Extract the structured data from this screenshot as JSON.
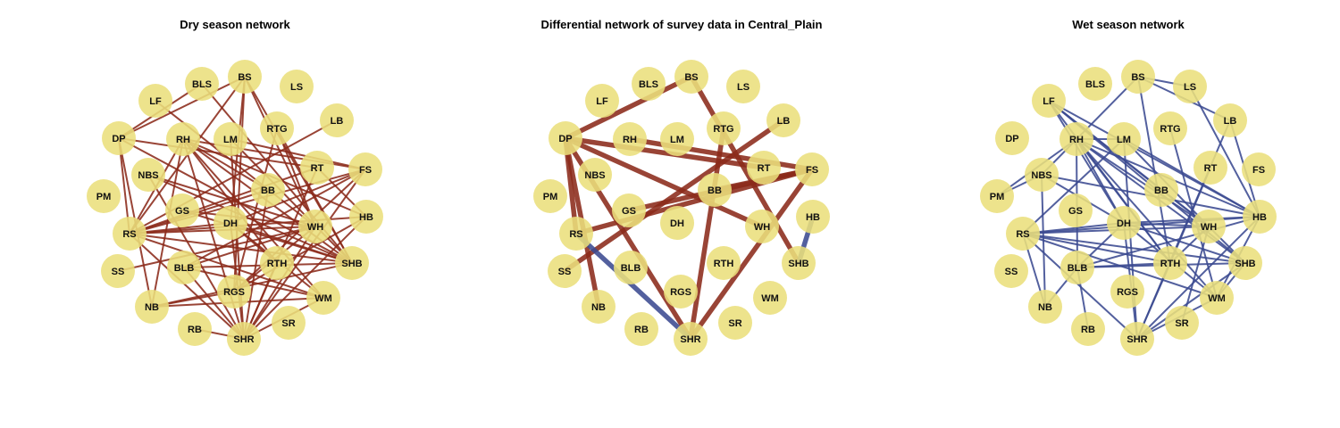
{
  "colors": {
    "node": "#eadf7c",
    "positive_edge": "#8b2a1a",
    "negative_edge": "#3b4a91"
  },
  "nodes": [
    "BS",
    "BLS",
    "LS",
    "LF",
    "LB",
    "DP",
    "RH",
    "LM",
    "RTG",
    "RT",
    "FS",
    "NBS",
    "BB",
    "PM",
    "GS",
    "DH",
    "WH",
    "HB",
    "RS",
    "RTH",
    "SHB",
    "SS",
    "BLB",
    "RGS",
    "WM",
    "NB",
    "RB",
    "SHR",
    "SR"
  ],
  "panels": [
    {
      "title": "Dry season network",
      "edge_color": "#8b2a1a",
      "edges": [
        [
          "DP",
          "BS"
        ],
        [
          "DP",
          "BLS"
        ],
        [
          "DP",
          "RT"
        ],
        [
          "DP",
          "SHB"
        ],
        [
          "DP",
          "RS"
        ],
        [
          "DP",
          "NB"
        ],
        [
          "LF",
          "WH"
        ],
        [
          "BLS",
          "SHB"
        ],
        [
          "BS",
          "RS"
        ],
        [
          "BS",
          "SHB"
        ],
        [
          "BS",
          "WH"
        ],
        [
          "BS",
          "DH"
        ],
        [
          "BS",
          "RGS"
        ],
        [
          "RH",
          "FS"
        ],
        [
          "RH",
          "SHB"
        ],
        [
          "RH",
          "RS"
        ],
        [
          "RH",
          "WM"
        ],
        [
          "RH",
          "SHR"
        ],
        [
          "RH",
          "NB"
        ],
        [
          "RH",
          "BB"
        ],
        [
          "RH",
          "RTH"
        ],
        [
          "RH",
          "HB"
        ],
        [
          "LM",
          "FS"
        ],
        [
          "LM",
          "SHB"
        ],
        [
          "LM",
          "SHR"
        ],
        [
          "RTG",
          "WH"
        ],
        [
          "RTG",
          "SHB"
        ],
        [
          "RTG",
          "RGS"
        ],
        [
          "LB",
          "RS"
        ],
        [
          "RT",
          "RS"
        ],
        [
          "RT",
          "HB"
        ],
        [
          "RT",
          "SHR"
        ],
        [
          "FS",
          "SHR"
        ],
        [
          "FS",
          "RS"
        ],
        [
          "FS",
          "DH"
        ],
        [
          "FS",
          "BLB"
        ],
        [
          "FS",
          "RGS"
        ],
        [
          "NBS",
          "SHB"
        ],
        [
          "NBS",
          "WH"
        ],
        [
          "NBS",
          "SHR"
        ],
        [
          "BB",
          "RS"
        ],
        [
          "BB",
          "SHR"
        ],
        [
          "GS",
          "WH"
        ],
        [
          "GS",
          "SHB"
        ],
        [
          "DH",
          "RS"
        ],
        [
          "DH",
          "SHR"
        ],
        [
          "DH",
          "WM"
        ],
        [
          "DH",
          "SHB"
        ],
        [
          "DH",
          "RTH"
        ],
        [
          "WH",
          "RS"
        ],
        [
          "WH",
          "SHR"
        ],
        [
          "WH",
          "BLB"
        ],
        [
          "WH",
          "RGS"
        ],
        [
          "WH",
          "SS"
        ],
        [
          "HB",
          "RS"
        ],
        [
          "HB",
          "SHR"
        ],
        [
          "HB",
          "RGS"
        ],
        [
          "RS",
          "SHB"
        ],
        [
          "RS",
          "WM"
        ],
        [
          "RS",
          "SHR"
        ],
        [
          "RTH",
          "SHR"
        ],
        [
          "SHB",
          "BLB"
        ],
        [
          "SHB",
          "NB"
        ],
        [
          "BLB",
          "SHR"
        ],
        [
          "BLB",
          "WM"
        ],
        [
          "RGS",
          "NB"
        ],
        [
          "NB",
          "WM"
        ],
        [
          "WM",
          "SHR"
        ],
        [
          "RB",
          "SHR"
        ]
      ]
    },
    {
      "title": "Differential network of survey data in Central_Plain",
      "edges": [
        {
          "e": [
            "DP",
            "BS"
          ],
          "s": "pos"
        },
        {
          "e": [
            "DP",
            "RT"
          ],
          "s": "pos"
        },
        {
          "e": [
            "DP",
            "RS"
          ],
          "s": "pos"
        },
        {
          "e": [
            "DP",
            "NB"
          ],
          "s": "pos"
        },
        {
          "e": [
            "DP",
            "WH"
          ],
          "s": "pos"
        },
        {
          "e": [
            "DP",
            "SHR"
          ],
          "s": "pos"
        },
        {
          "e": [
            "BS",
            "SHB"
          ],
          "s": "pos"
        },
        {
          "e": [
            "RH",
            "FS"
          ],
          "s": "pos"
        },
        {
          "e": [
            "RTG",
            "SHR"
          ],
          "s": "pos"
        },
        {
          "e": [
            "LB",
            "SS"
          ],
          "s": "pos"
        },
        {
          "e": [
            "FS",
            "RS"
          ],
          "s": "pos"
        },
        {
          "e": [
            "FS",
            "SHR"
          ],
          "s": "pos"
        },
        {
          "e": [
            "FS",
            "BB"
          ],
          "s": "pos"
        },
        {
          "e": [
            "GS",
            "FS"
          ],
          "s": "pos"
        },
        {
          "e": [
            "RS",
            "SHR"
          ],
          "s": "neg"
        },
        {
          "e": [
            "HB",
            "SHB"
          ],
          "s": "neg"
        }
      ]
    },
    {
      "title": "Wet season network",
      "edge_color": "#3b4a91",
      "edges": [
        [
          "BS",
          "LS"
        ],
        [
          "BS",
          "LB"
        ],
        [
          "BS",
          "RTH"
        ],
        [
          "BS",
          "NBS"
        ],
        [
          "LF",
          "DH"
        ],
        [
          "LF",
          "SHB"
        ],
        [
          "LF",
          "WH"
        ],
        [
          "LF",
          "HB"
        ],
        [
          "LF",
          "BB"
        ],
        [
          "LF",
          "RTH"
        ],
        [
          "RH",
          "LM"
        ],
        [
          "RH",
          "SHB"
        ],
        [
          "RH",
          "WM"
        ],
        [
          "RH",
          "HB"
        ],
        [
          "RH",
          "WH"
        ],
        [
          "RH",
          "RTH"
        ],
        [
          "RH",
          "DH"
        ],
        [
          "RH",
          "PM"
        ],
        [
          "RH",
          "BLB"
        ],
        [
          "LM",
          "HB"
        ],
        [
          "LM",
          "RS"
        ],
        [
          "LM",
          "WH"
        ],
        [
          "LM",
          "SHR"
        ],
        [
          "RTG",
          "WM"
        ],
        [
          "LS",
          "HB"
        ],
        [
          "RT",
          "RTH"
        ],
        [
          "LB",
          "HB"
        ],
        [
          "LB",
          "SHR"
        ],
        [
          "NBS",
          "PM"
        ],
        [
          "NBS",
          "NB"
        ],
        [
          "NBS",
          "DH"
        ],
        [
          "NBS",
          "HB"
        ],
        [
          "BB",
          "WH"
        ],
        [
          "DH",
          "WH"
        ],
        [
          "DH",
          "HB"
        ],
        [
          "DH",
          "SHB"
        ],
        [
          "DH",
          "RS"
        ],
        [
          "DH",
          "WM"
        ],
        [
          "DH",
          "BLB"
        ],
        [
          "DH",
          "SHR"
        ],
        [
          "WH",
          "RS"
        ],
        [
          "WH",
          "RTH"
        ],
        [
          "WH",
          "SHB"
        ],
        [
          "WH",
          "SR"
        ],
        [
          "HB",
          "RS"
        ],
        [
          "HB",
          "BLB"
        ],
        [
          "HB",
          "WM"
        ],
        [
          "HB",
          "SHR"
        ],
        [
          "RS",
          "SHB"
        ],
        [
          "RS",
          "RTH"
        ],
        [
          "RS",
          "NB"
        ],
        [
          "RS",
          "SHR"
        ],
        [
          "RS",
          "WM"
        ],
        [
          "RTH",
          "SHR"
        ],
        [
          "RTH",
          "BLB"
        ],
        [
          "SHB",
          "BLB"
        ],
        [
          "SHB",
          "SHR"
        ],
        [
          "SHB",
          "WM"
        ],
        [
          "BLB",
          "NB"
        ],
        [
          "BLB",
          "RB"
        ],
        [
          "WM",
          "SHR"
        ]
      ]
    }
  ]
}
